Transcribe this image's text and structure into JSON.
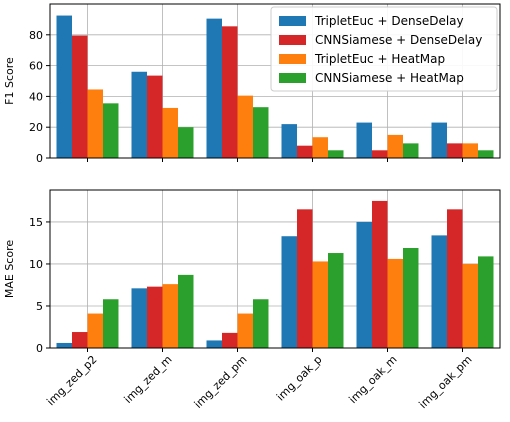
{
  "colors": {
    "series": [
      "#1f77b4",
      "#d62728",
      "#ff7f0e",
      "#2ca02c"
    ],
    "grid": "#b0b0b0",
    "frame": "#000000"
  },
  "chart_data": [
    {
      "type": "bar",
      "ylabel": "F1 Score",
      "ylim": [
        0,
        100
      ],
      "yticks": [
        0,
        20,
        40,
        60,
        80
      ],
      "grid": true,
      "legend": "top-right",
      "categories": [
        "img_zed_p2",
        "img_zed_m",
        "img_zed_pm",
        "img_oak_p",
        "img_oak_m",
        "img_oak_pm"
      ],
      "series": [
        {
          "name": "TripletEuc + DenseDelay",
          "values": [
            92.5,
            56,
            90.5,
            22,
            23,
            23
          ]
        },
        {
          "name": "CNNSiamese + DenseDelay",
          "values": [
            79.5,
            53.5,
            85.5,
            8,
            5,
            9.5
          ]
        },
        {
          "name": "TripletEuc + HeatMap",
          "values": [
            44.5,
            32.5,
            40.5,
            13.5,
            15,
            9.5
          ]
        },
        {
          "name": "CNNSiamese + HeatMap",
          "values": [
            35.5,
            20,
            33,
            5,
            9.5,
            5
          ]
        }
      ]
    },
    {
      "type": "bar",
      "ylabel": "MAE Score",
      "ylim": [
        0,
        18.8
      ],
      "yticks": [
        0,
        5,
        10,
        15
      ],
      "grid": true,
      "categories": [
        "img_zed_p2",
        "img_zed_m",
        "img_zed_pm",
        "img_oak_p",
        "img_oak_m",
        "img_oak_pm"
      ],
      "series": [
        {
          "values": [
            0.6,
            7.1,
            0.9,
            13.3,
            15.0,
            13.4
          ]
        },
        {
          "values": [
            1.9,
            7.3,
            1.8,
            16.5,
            17.5,
            16.5
          ]
        },
        {
          "values": [
            4.1,
            7.6,
            4.1,
            10.3,
            10.6,
            10.0
          ]
        },
        {
          "values": [
            5.8,
            8.7,
            5.8,
            11.3,
            11.9,
            10.9
          ]
        }
      ]
    }
  ]
}
